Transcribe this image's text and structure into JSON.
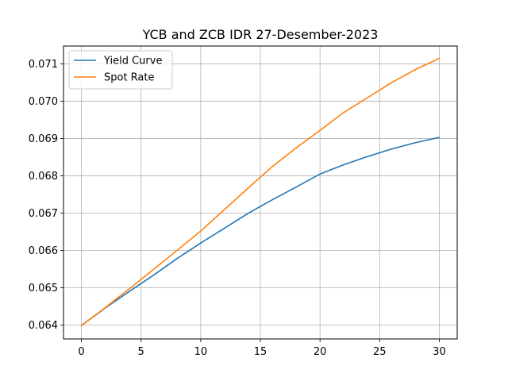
{
  "chart_data": {
    "type": "line",
    "title": "YCB and ZCB IDR 27-Desember-2023",
    "xlabel": "",
    "ylabel": "",
    "xlim": [
      -1.5,
      31.5
    ],
    "ylim": [
      0.06363,
      0.07148
    ],
    "x_ticks": [
      0,
      5,
      10,
      15,
      20,
      25,
      30
    ],
    "x_tick_labels": [
      "0",
      "5",
      "10",
      "15",
      "20",
      "25",
      "30"
    ],
    "y_ticks": [
      0.064,
      0.065,
      0.066,
      0.067,
      0.068,
      0.069,
      0.07,
      0.071
    ],
    "y_tick_labels": [
      "0.064",
      "0.065",
      "0.066",
      "0.067",
      "0.068",
      "0.069",
      "0.070",
      "0.071"
    ],
    "grid": true,
    "legend_position": "top-left",
    "x": [
      0,
      2,
      4,
      6,
      8,
      10,
      12,
      14,
      16,
      18,
      20,
      22,
      24,
      26,
      28,
      30
    ],
    "series": [
      {
        "name": "Yield Curve",
        "color": "#1f77b4",
        "values": [
          0.06399,
          0.06446,
          0.0649,
          0.06533,
          0.06578,
          0.0662,
          0.0666,
          0.067,
          0.06736,
          0.0677,
          0.06805,
          0.0683,
          0.06852,
          0.06872,
          0.06889,
          0.06903
        ]
      },
      {
        "name": "Spot Rate",
        "color": "#ff7f0e",
        "values": [
          0.06399,
          0.06447,
          0.06497,
          0.06548,
          0.066,
          0.06652,
          0.0671,
          0.06768,
          0.06825,
          0.06875,
          0.06922,
          0.0697,
          0.0701,
          0.0705,
          0.07085,
          0.07115
        ]
      }
    ]
  }
}
